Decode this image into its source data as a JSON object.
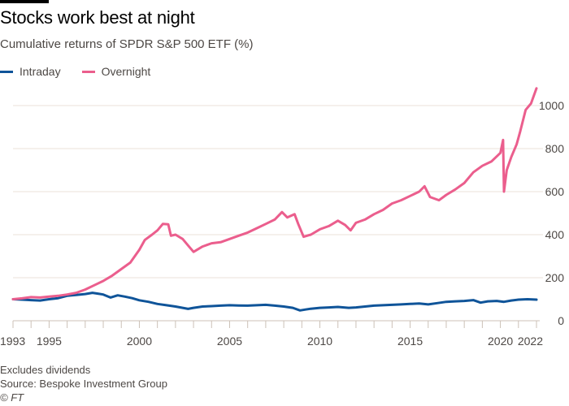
{
  "header": {
    "title": "Stocks work best at night",
    "subtitle": "Cumulative returns of SPDR S&P 500 ETF (%)"
  },
  "footer": {
    "note": "Excludes dividends",
    "source": "Source: Bespoke Investment Group",
    "copyright": "© FT"
  },
  "chart_data": {
    "type": "line",
    "title": "Stocks work best at night",
    "subtitle": "Cumulative returns of SPDR S&P 500 ETF (%)",
    "xlabel": "",
    "ylabel": "",
    "xlim": [
      1993,
      2022
    ],
    "ylim": [
      0,
      1100
    ],
    "x_ticks": [
      "1993",
      "1995",
      "2000",
      "2005",
      "2010",
      "2015",
      "2020",
      "2022"
    ],
    "x_tick_values": [
      1993,
      1995,
      2000,
      2005,
      2010,
      2015,
      2020,
      2022
    ],
    "y_ticks": [
      "0",
      "200",
      "400",
      "600",
      "800",
      "1000"
    ],
    "y_tick_values": [
      0,
      200,
      400,
      600,
      800,
      1000
    ],
    "y_axis_side": "right",
    "grid": true,
    "legend_position": "top-left",
    "series": [
      {
        "name": "Intraday",
        "color": "#0f5499",
        "x": [
          1993,
          1993.5,
          1994,
          1994.5,
          1995,
          1995.5,
          1996,
          1996.5,
          1997,
          1997.4,
          1997.7,
          1998,
          1998.4,
          1998.8,
          1999.2,
          1999.6,
          2000,
          2000.5,
          2001,
          2001.5,
          2002,
          2002.4,
          2002.7,
          2003,
          2003.5,
          2004,
          2004.5,
          2005,
          2005.5,
          2006,
          2006.5,
          2007,
          2007.5,
          2008,
          2008.5,
          2008.9,
          2009.2,
          2009.5,
          2010,
          2010.5,
          2011,
          2011.6,
          2012,
          2012.5,
          2013,
          2013.5,
          2014,
          2014.5,
          2015,
          2015.5,
          2016,
          2016.5,
          2017,
          2017.5,
          2018,
          2018.5,
          2018.9,
          2019.3,
          2019.8,
          2020.2,
          2020.6,
          2021,
          2021.5,
          2022
        ],
        "values": [
          100,
          98,
          96,
          94,
          100,
          105,
          116,
          120,
          124,
          130,
          126,
          122,
          108,
          118,
          112,
          105,
          95,
          88,
          78,
          72,
          66,
          60,
          55,
          60,
          66,
          68,
          70,
          72,
          71,
          70,
          72,
          74,
          70,
          66,
          60,
          48,
          52,
          56,
          60,
          62,
          64,
          60,
          62,
          66,
          70,
          72,
          74,
          76,
          78,
          80,
          76,
          82,
          88,
          90,
          92,
          96,
          84,
          90,
          92,
          88,
          94,
          98,
          100,
          98
        ]
      },
      {
        "name": "Overnight",
        "color": "#eb5e8d",
        "x": [
          1993,
          1993.5,
          1994,
          1994.5,
          1995,
          1995.5,
          1996,
          1996.5,
          1997,
          1997.5,
          1998,
          1998.5,
          1999,
          1999.5,
          2000,
          2000.3,
          2000.7,
          2001,
          2001.3,
          2001.6,
          2001.75,
          2002,
          2002.4,
          2002.7,
          2003,
          2003.5,
          2004,
          2004.5,
          2005,
          2005.5,
          2006,
          2006.5,
          2007,
          2007.5,
          2007.9,
          2008.2,
          2008.6,
          2008.8,
          2009.1,
          2009.5,
          2010,
          2010.5,
          2011,
          2011.4,
          2011.7,
          2012,
          2012.5,
          2013,
          2013.5,
          2014,
          2014.5,
          2015,
          2015.5,
          2015.8,
          2016.1,
          2016.6,
          2017,
          2017.5,
          2018,
          2018.5,
          2019,
          2019.5,
          2020.0,
          2020.15,
          2020.2,
          2020.35,
          2020.6,
          2020.9,
          2021.1,
          2021.4,
          2021.7,
          2022
        ],
        "values": [
          100,
          104,
          110,
          108,
          112,
          116,
          122,
          130,
          145,
          165,
          185,
          210,
          240,
          270,
          330,
          375,
          400,
          420,
          450,
          448,
          395,
          400,
          380,
          350,
          320,
          345,
          360,
          365,
          380,
          395,
          410,
          430,
          450,
          470,
          505,
          480,
          495,
          450,
          390,
          400,
          425,
          440,
          465,
          445,
          420,
          455,
          470,
          495,
          515,
          545,
          560,
          580,
          600,
          625,
          575,
          560,
          585,
          610,
          640,
          690,
          720,
          740,
          780,
          840,
          600,
          700,
          760,
          820,
          880,
          980,
          1010,
          1080
        ]
      }
    ]
  }
}
